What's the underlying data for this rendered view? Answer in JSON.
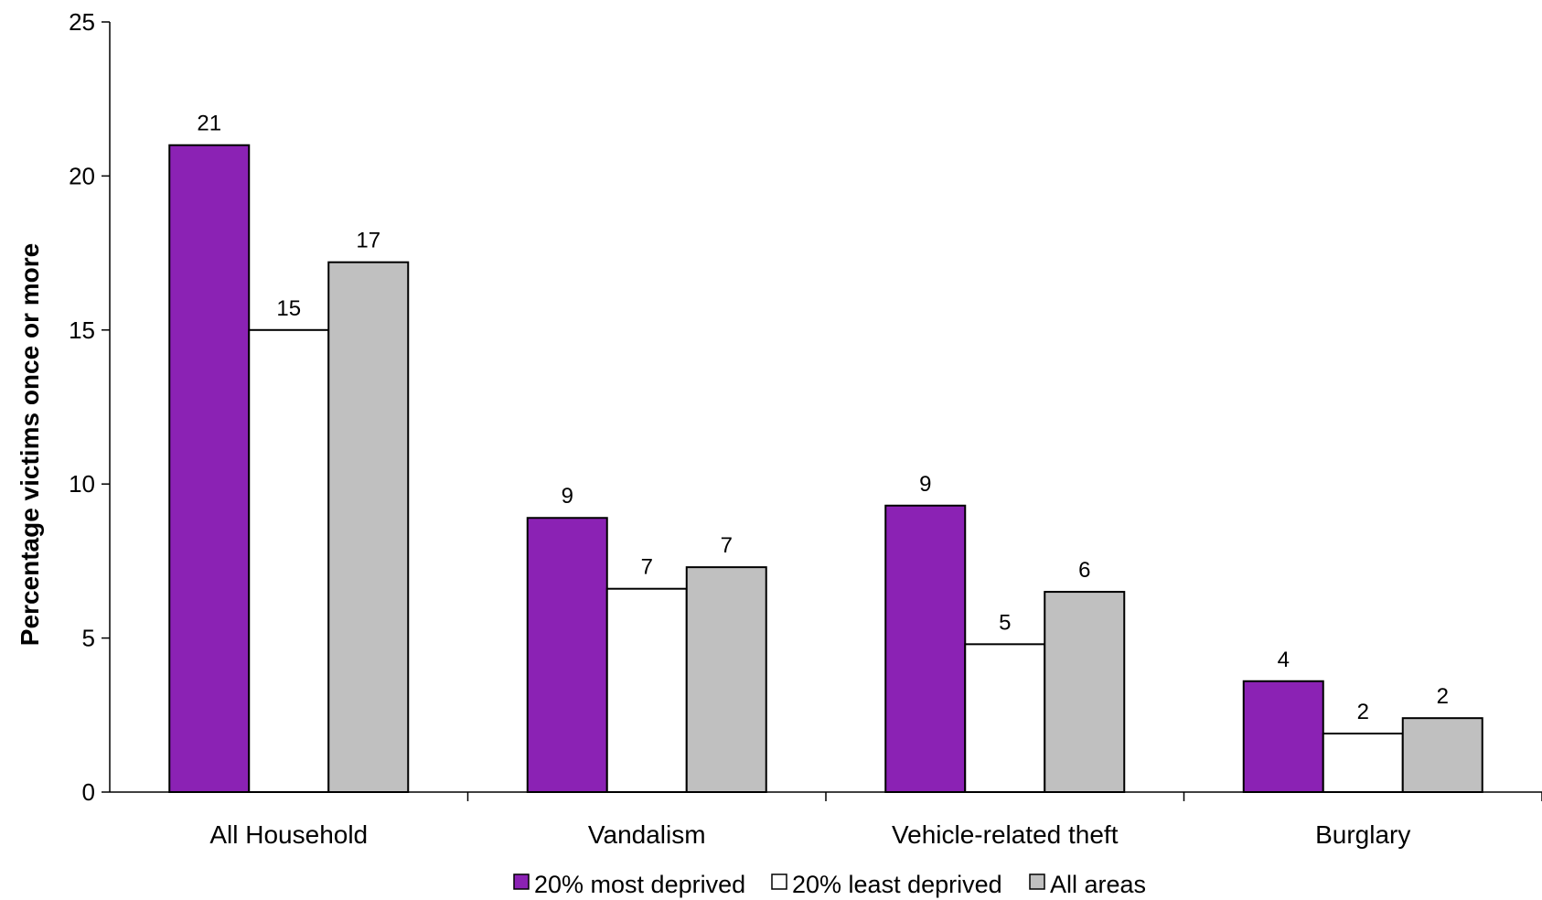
{
  "chart_data": {
    "type": "bar",
    "title": "",
    "xlabel": "",
    "ylabel": "Percentage victims once or more",
    "ylim": [
      0,
      25
    ],
    "yticks": [
      0,
      5,
      10,
      15,
      20,
      25
    ],
    "grid": false,
    "legend_position": "bottom",
    "categories": [
      "All Household",
      "Vandalism",
      "Vehicle-related theft",
      "Burglary"
    ],
    "series": [
      {
        "name": "20% most deprived",
        "color": "#8B22B4",
        "values": [
          21.0,
          8.9,
          9.3,
          3.6
        ],
        "labels": [
          "21",
          "9",
          "9",
          "4"
        ]
      },
      {
        "name": "20% least deprived",
        "color": "#FFFFFF",
        "values": [
          15.0,
          6.6,
          4.8,
          1.9
        ],
        "labels": [
          "15",
          "7",
          "5",
          "2"
        ]
      },
      {
        "name": "All areas",
        "color": "#C0C0C0",
        "values": [
          17.2,
          7.3,
          6.5,
          2.4
        ],
        "labels": [
          "17",
          "7",
          "6",
          "2"
        ]
      }
    ]
  }
}
